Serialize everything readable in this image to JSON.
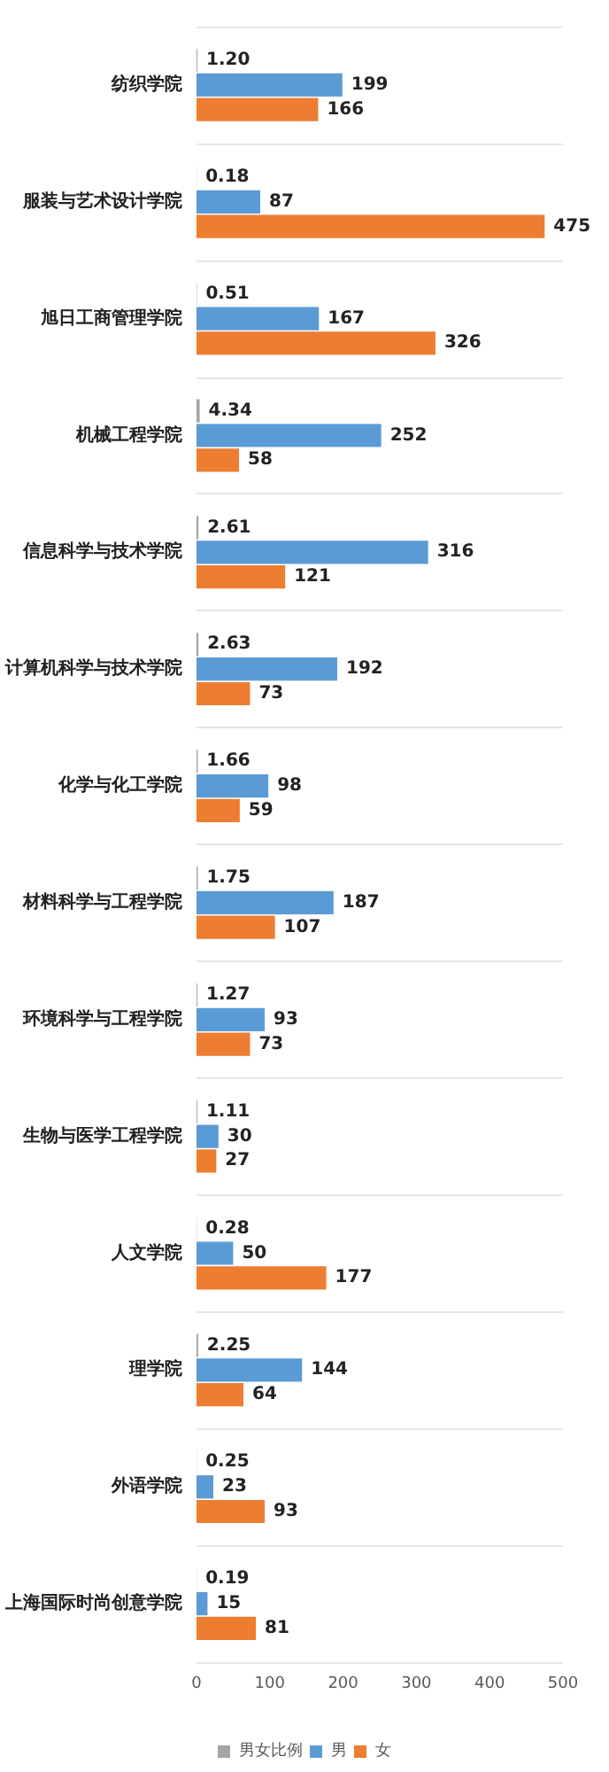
{
  "chart_data": {
    "type": "bar",
    "orientation": "horizontal",
    "categories": [
      "纺织学院",
      "服装与艺术设计学院",
      "旭日工商管理学院",
      "机械工程学院",
      "信息科学与技术学院",
      "计算机科学与技术学院",
      "化学与化工学院",
      "材料科学与工程学院",
      "环境科学与工程学院",
      "生物与医学工程学院",
      "人文学院",
      "理学院",
      "外语学院",
      "上海国际时尚创意学院"
    ],
    "series": [
      {
        "name": "男女比例",
        "color": "#a5a5a5",
        "values": [
          1.2,
          0.18,
          0.51,
          4.34,
          2.61,
          2.63,
          1.66,
          1.75,
          1.27,
          1.11,
          0.28,
          2.25,
          0.25,
          0.19
        ],
        "value_labels": [
          "1.20",
          "0.18",
          "0.51",
          "4.34",
          "2.61",
          "2.63",
          "1.66",
          "1.75",
          "1.27",
          "1.11",
          "0.28",
          "2.25",
          "0.25",
          "0.19"
        ]
      },
      {
        "name": "男",
        "color": "#5b9bd5",
        "values": [
          199,
          87,
          167,
          252,
          316,
          192,
          98,
          187,
          93,
          30,
          50,
          144,
          23,
          15
        ]
      },
      {
        "name": "女",
        "color": "#ed7d31",
        "values": [
          166,
          475,
          326,
          58,
          121,
          73,
          59,
          107,
          73,
          27,
          177,
          64,
          93,
          81
        ]
      }
    ],
    "xlim": [
      0,
      500
    ],
    "xticks": [
      0,
      100,
      200,
      300,
      400,
      500
    ],
    "data_labels": true,
    "grid": "y",
    "legend": "bottom"
  }
}
